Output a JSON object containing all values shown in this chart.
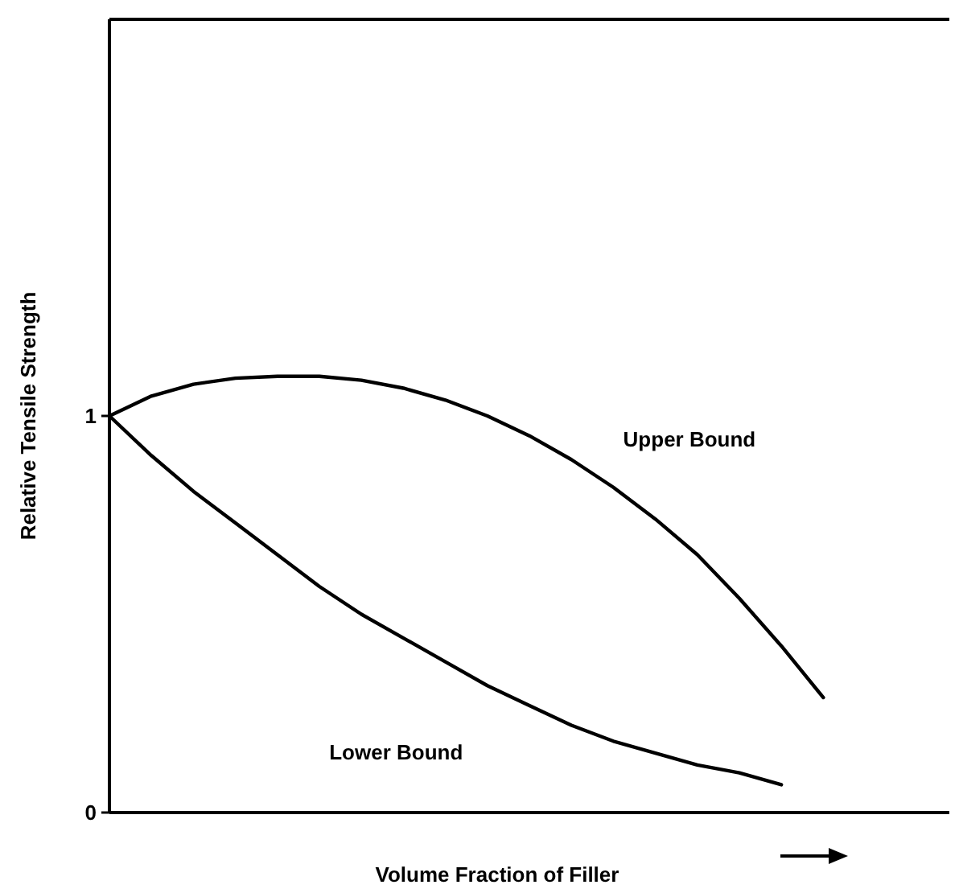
{
  "chart_data": {
    "type": "line",
    "xlabel": "Volume Fraction of Filler",
    "ylabel": "Relative Tensile Strength",
    "categories": [
      null,
      null,
      null,
      null,
      null,
      null,
      null,
      null,
      null,
      null,
      null,
      null,
      null,
      null,
      null,
      null,
      null,
      null,
      null,
      null,
      null
    ],
    "series": [
      {
        "name": "Upper Bound",
        "color": "#000000",
        "values": [
          1.0,
          1.05,
          1.08,
          1.095,
          1.1,
          1.1,
          1.09,
          1.07,
          1.04,
          1.0,
          0.95,
          0.89,
          0.82,
          0.74,
          0.65,
          0.54,
          0.42,
          0.29,
          null,
          null,
          null
        ]
      },
      {
        "name": "Lower Bound",
        "color": "#000000",
        "values": [
          1.0,
          0.9,
          0.81,
          0.73,
          0.65,
          0.57,
          0.5,
          0.44,
          0.38,
          0.32,
          0.27,
          0.22,
          0.18,
          0.15,
          0.12,
          0.1,
          0.07,
          null,
          null,
          null,
          null
        ]
      }
    ],
    "ylim": [
      0,
      2
    ],
    "yticks": [
      0,
      1
    ],
    "grid": false,
    "marker": "none",
    "line_style": "solid"
  }
}
